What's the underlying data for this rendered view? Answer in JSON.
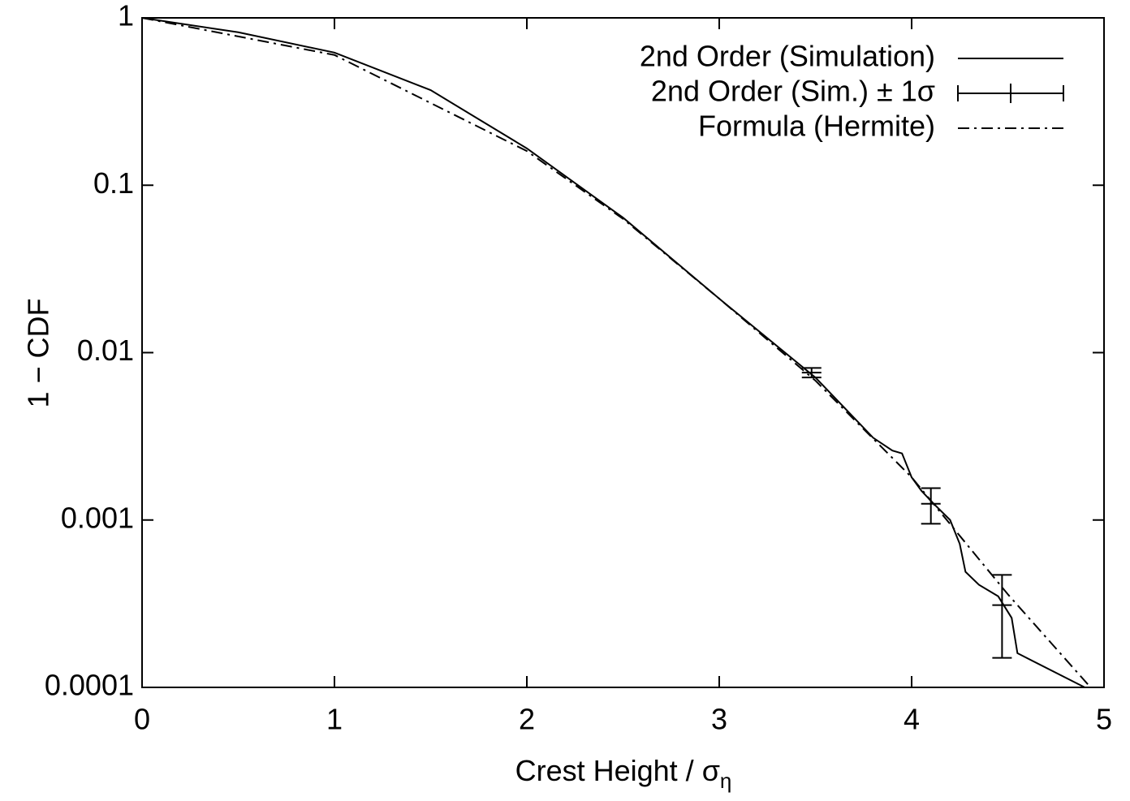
{
  "chart_data": {
    "type": "line",
    "x_label": "Crest Height / σ",
    "x_label_subscript": "η",
    "y_label": "1 − CDF",
    "xlim": [
      0,
      5
    ],
    "xticks": [
      0,
      1,
      2,
      3,
      4,
      5
    ],
    "ylim": [
      0.0001,
      1
    ],
    "yticks": [
      1,
      0.1,
      0.01,
      0.001,
      0.0001
    ],
    "y_log": true,
    "legend": "upper right",
    "series": [
      {
        "name": "2nd Order (Simulation)",
        "color": "#000000",
        "style": "solid",
        "x": [
          0,
          0.5,
          1,
          1.5,
          2,
          2.5,
          3,
          3.5,
          3.8,
          3.9,
          3.95,
          4.0,
          4.05,
          4.1,
          4.2,
          4.25,
          4.28,
          4.35,
          4.45,
          4.52,
          4.55,
          4.9
        ],
        "values": [
          1,
          0.82,
          0.62,
          0.37,
          0.166,
          0.064,
          0.021,
          0.0071,
          0.0031,
          0.0026,
          0.0025,
          0.0018,
          0.0015,
          0.0013,
          0.001,
          0.00072,
          0.00049,
          0.00041,
          0.00035,
          0.00026,
          0.00016,
          0.0001
        ]
      },
      {
        "name": "2nd Order (Sim.) ± 1σ",
        "color": "#000000",
        "style": "errorbars",
        "x": [
          3.48,
          4.1,
          4.47
        ],
        "values": [
          0.0076,
          0.00125,
          0.00031
        ],
        "errors": [
          0.0005,
          0.0003,
          0.00016
        ]
      },
      {
        "name": "Formula (Hermite)",
        "color": "#000000",
        "style": "dashdot",
        "x": [
          0,
          1,
          2,
          2.5,
          3,
          3.5,
          4,
          4.5,
          4.93
        ],
        "values": [
          1,
          0.6,
          0.16,
          0.063,
          0.021,
          0.0068,
          0.0018,
          0.00036,
          0.0001
        ]
      }
    ]
  }
}
